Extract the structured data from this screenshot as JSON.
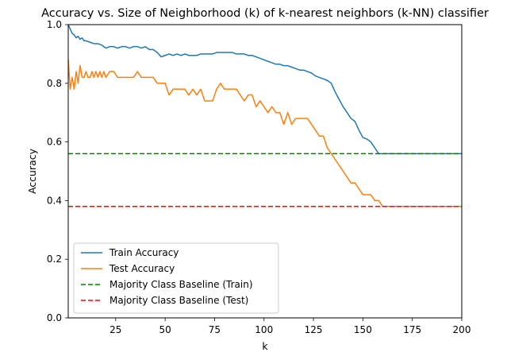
{
  "chart_data": {
    "type": "line",
    "title": "Accuracy vs. Size of Neighborhood (k) of k-nearest neighbors (k-NN) classifier",
    "xlabel": "k",
    "ylabel": "Accuracy",
    "xlim": [
      1,
      200
    ],
    "ylim": [
      0.0,
      1.0
    ],
    "x_ticks": [
      25,
      50,
      75,
      100,
      125,
      150,
      175,
      200
    ],
    "x_tick_labels": [
      "25",
      "50",
      "75",
      "100",
      "125",
      "150",
      "175",
      "200"
    ],
    "y_ticks": [
      0.0,
      0.2,
      0.4,
      0.6,
      0.8,
      1.0
    ],
    "y_tick_labels": [
      "0.0",
      "0.2",
      "0.4",
      "0.6",
      "0.8",
      "1.0"
    ],
    "grid": false,
    "legend_position": "lower-left",
    "series": [
      {
        "name": "Train Accuracy",
        "style": "solid",
        "color": "#1f77b4",
        "x": [
          1,
          2,
          3,
          4,
          5,
          6,
          7,
          8,
          9,
          10,
          12,
          14,
          16,
          18,
          20,
          22,
          24,
          26,
          28,
          30,
          32,
          34,
          36,
          38,
          40,
          42,
          44,
          46,
          48,
          50,
          52,
          54,
          56,
          58,
          60,
          62,
          64,
          66,
          68,
          70,
          72,
          74,
          76,
          78,
          80,
          82,
          84,
          86,
          88,
          90,
          92,
          94,
          96,
          98,
          100,
          102,
          104,
          106,
          108,
          110,
          112,
          114,
          116,
          118,
          120,
          122,
          124,
          126,
          128,
          130,
          132,
          134,
          136,
          138,
          140,
          142,
          144,
          146,
          148,
          150,
          152,
          154,
          156,
          158,
          160,
          170,
          180,
          190,
          200
        ],
        "y": [
          1.0,
          0.985,
          0.97,
          0.965,
          0.955,
          0.96,
          0.95,
          0.955,
          0.945,
          0.945,
          0.94,
          0.935,
          0.935,
          0.93,
          0.92,
          0.925,
          0.925,
          0.92,
          0.925,
          0.925,
          0.92,
          0.925,
          0.925,
          0.92,
          0.925,
          0.915,
          0.915,
          0.905,
          0.89,
          0.895,
          0.9,
          0.895,
          0.9,
          0.895,
          0.9,
          0.895,
          0.895,
          0.895,
          0.9,
          0.9,
          0.9,
          0.9,
          0.905,
          0.905,
          0.905,
          0.905,
          0.905,
          0.9,
          0.9,
          0.9,
          0.895,
          0.895,
          0.89,
          0.885,
          0.88,
          0.875,
          0.87,
          0.865,
          0.865,
          0.86,
          0.86,
          0.855,
          0.85,
          0.845,
          0.845,
          0.84,
          0.835,
          0.825,
          0.82,
          0.815,
          0.81,
          0.8,
          0.77,
          0.745,
          0.72,
          0.7,
          0.68,
          0.67,
          0.64,
          0.615,
          0.61,
          0.6,
          0.58,
          0.56,
          0.56,
          0.56,
          0.56,
          0.56,
          0.56
        ]
      },
      {
        "name": "Test Accuracy",
        "style": "solid",
        "color": "#ff7f0e",
        "x": [
          1,
          2,
          3,
          4,
          5,
          6,
          7,
          8,
          9,
          10,
          11,
          12,
          13,
          14,
          15,
          16,
          17,
          18,
          19,
          20,
          22,
          24,
          26,
          28,
          30,
          32,
          34,
          36,
          38,
          40,
          42,
          44,
          46,
          48,
          50,
          52,
          54,
          56,
          58,
          60,
          62,
          64,
          66,
          68,
          70,
          72,
          74,
          76,
          78,
          80,
          82,
          84,
          86,
          88,
          90,
          92,
          94,
          96,
          98,
          100,
          102,
          104,
          106,
          108,
          110,
          112,
          114,
          116,
          118,
          120,
          122,
          124,
          126,
          128,
          130,
          132,
          134,
          136,
          138,
          140,
          142,
          144,
          146,
          148,
          150,
          152,
          154,
          156,
          158,
          160,
          170,
          180,
          190,
          200
        ],
        "y": [
          0.88,
          0.78,
          0.82,
          0.78,
          0.84,
          0.8,
          0.86,
          0.82,
          0.82,
          0.84,
          0.82,
          0.82,
          0.84,
          0.82,
          0.84,
          0.82,
          0.84,
          0.82,
          0.84,
          0.82,
          0.84,
          0.84,
          0.82,
          0.82,
          0.82,
          0.82,
          0.82,
          0.84,
          0.82,
          0.82,
          0.82,
          0.82,
          0.8,
          0.8,
          0.8,
          0.76,
          0.78,
          0.78,
          0.78,
          0.78,
          0.76,
          0.78,
          0.76,
          0.78,
          0.74,
          0.74,
          0.74,
          0.78,
          0.8,
          0.78,
          0.78,
          0.78,
          0.78,
          0.76,
          0.74,
          0.76,
          0.76,
          0.72,
          0.74,
          0.72,
          0.7,
          0.72,
          0.7,
          0.7,
          0.66,
          0.7,
          0.66,
          0.68,
          0.68,
          0.68,
          0.68,
          0.66,
          0.64,
          0.62,
          0.62,
          0.58,
          0.56,
          0.54,
          0.52,
          0.5,
          0.48,
          0.46,
          0.46,
          0.44,
          0.42,
          0.42,
          0.42,
          0.4,
          0.4,
          0.38,
          0.38,
          0.38,
          0.38,
          0.38
        ]
      },
      {
        "name": "Majority Class Baseline (Train)",
        "style": "dashed",
        "color": "#008000",
        "x": [
          1,
          200
        ],
        "y": [
          0.56,
          0.56
        ]
      },
      {
        "name": "Majority Class Baseline (Test)",
        "style": "dashed",
        "color": "#ff0000",
        "x": [
          1,
          200
        ],
        "y": [
          0.38,
          0.38
        ]
      }
    ]
  }
}
